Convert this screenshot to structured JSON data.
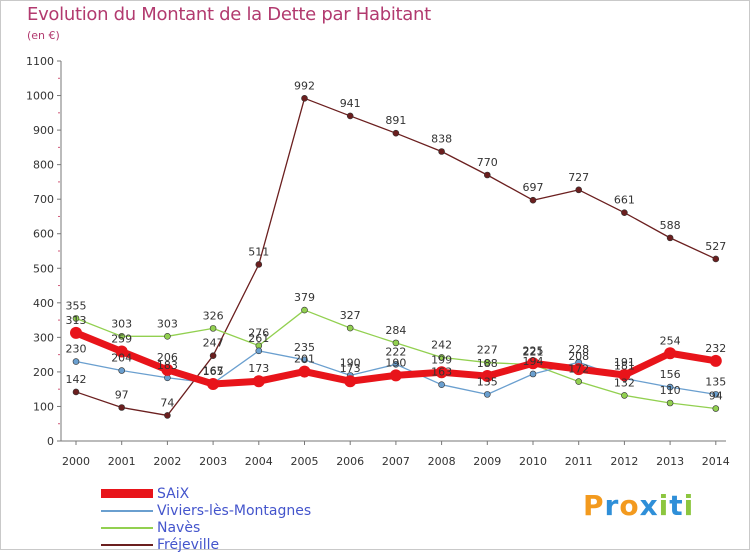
{
  "header": {
    "title": "Evolution du Montant de la Dette par Habitant",
    "subtitle": "(en €)"
  },
  "logo": {
    "letters": [
      {
        "char": "P",
        "color": "#f39a1e"
      },
      {
        "char": "r",
        "color": "#2f8fd8"
      },
      {
        "char": "o",
        "color": "#f39a1e"
      },
      {
        "char": "x",
        "color": "#2f8fd8"
      },
      {
        "char": "i",
        "color": "#8cc63f"
      },
      {
        "char": "t",
        "color": "#2f8fd8"
      },
      {
        "char": "i",
        "color": "#8cc63f"
      }
    ]
  },
  "chart_data": {
    "type": "line",
    "x": [
      "2000",
      "2001",
      "2002",
      "2003",
      "2004",
      "2005",
      "2006",
      "2007",
      "2008",
      "2009",
      "2010",
      "2011",
      "2012",
      "2013",
      "2014"
    ],
    "ylim": [
      0,
      1100
    ],
    "yticks": [
      0,
      100,
      200,
      300,
      400,
      500,
      600,
      700,
      800,
      900,
      1000,
      1100
    ],
    "grid": false,
    "legend_position": "bottom-left",
    "series": [
      {
        "name": "SAiX",
        "color": "#e8141a",
        "values": [
          313,
          259,
          206,
          165,
          173,
          201,
          173,
          190,
          199,
          188,
          225,
          208,
          191,
          254,
          232
        ],
        "labels": [
          "313",
          "259",
          "206",
          "165",
          "173",
          "201",
          "173",
          "190",
          "199",
          "188",
          "225",
          "208",
          "191",
          "254",
          "232"
        ]
      },
      {
        "name": "Viviers-lès-Montagnes",
        "color": "#6a9fcf",
        "values": [
          230,
          204,
          183,
          167,
          261,
          235,
          190,
          222,
          163,
          135,
          194,
          228,
          181,
          156,
          135
        ],
        "labels": [
          "230",
          "204",
          "183",
          "167",
          "261",
          "235",
          "190",
          "222",
          "163",
          "135",
          "194",
          "228",
          "181",
          "156",
          "135"
        ]
      },
      {
        "name": "Navès",
        "color": "#92d050",
        "values": [
          355,
          303,
          303,
          326,
          276,
          379,
          327,
          284,
          242,
          227,
          221,
          172,
          132,
          110,
          94
        ],
        "labels": [
          "355",
          "303",
          "303",
          "326",
          "276",
          "379",
          "327",
          "284",
          "242",
          "227",
          "221",
          "172",
          "132",
          "110",
          "94"
        ]
      },
      {
        "name": "Fréjeville",
        "color": "#6b1f1f",
        "values": [
          142,
          97,
          74,
          247,
          511,
          992,
          941,
          891,
          838,
          770,
          697,
          727,
          661,
          588,
          527
        ],
        "labels": [
          "142",
          "97",
          "74",
          "247",
          "511",
          "992",
          "941",
          "891",
          "838",
          "770",
          "697",
          "727",
          "661",
          "588",
          "527"
        ]
      }
    ]
  }
}
